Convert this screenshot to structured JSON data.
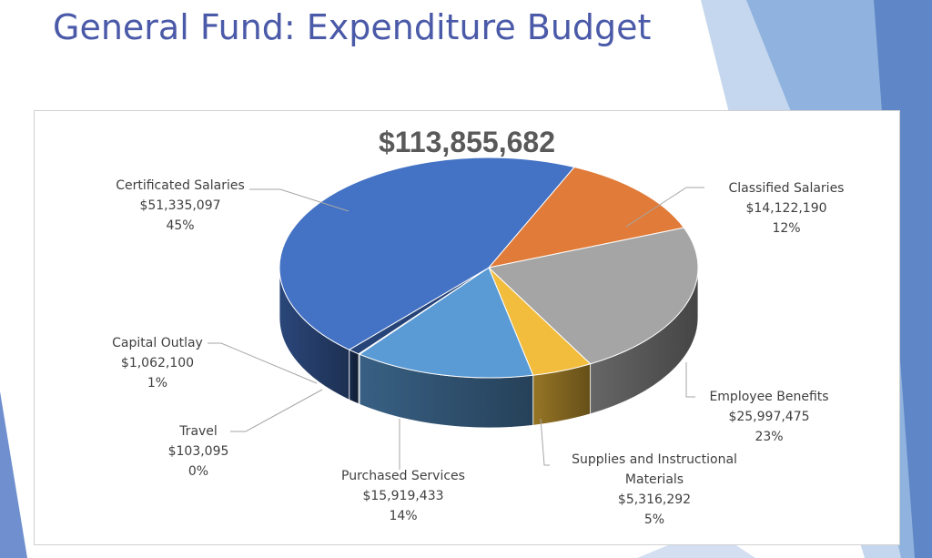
{
  "slide": {
    "title": "General Fund: Expenditure Budget"
  },
  "colors": {
    "title": "#4a5aa8",
    "accent_light": "#9ec3e6",
    "accent_mid": "#6f9fd4",
    "accent_dark": "#4a6fb8"
  },
  "chart_data": {
    "type": "pie",
    "title": "$113,855,682",
    "style": "3d",
    "slices": [
      {
        "name": "Classified Salaries",
        "amount": "$14,122,190",
        "percent": "12%",
        "value": 14122190,
        "color": "#e07b39"
      },
      {
        "name": "Employee Benefits",
        "amount": "$25,997,475",
        "percent": "23%",
        "value": 25997475,
        "color": "#a5a5a5"
      },
      {
        "name": "Supplies and Instructional Materials",
        "name_lines": [
          "Supplies and Instructional",
          "Materials"
        ],
        "amount": "$5,316,292",
        "percent": "5%",
        "value": 5316292,
        "color": "#f2bc3c"
      },
      {
        "name": "Purchased Services",
        "amount": "$15,919,433",
        "percent": "14%",
        "value": 15919433,
        "color": "#5b9bd5"
      },
      {
        "name": "Travel",
        "amount": "$103,095",
        "percent": "0%",
        "value": 103095,
        "color": "#1f3864"
      },
      {
        "name": "Capital Outlay",
        "amount": "$1,062,100",
        "percent": "1%",
        "value": 1062100,
        "color": "#264478"
      },
      {
        "name": "Certificated Salaries",
        "amount": "$51,335,097",
        "percent": "45%",
        "value": 51335097,
        "color": "#4472c4"
      }
    ]
  }
}
